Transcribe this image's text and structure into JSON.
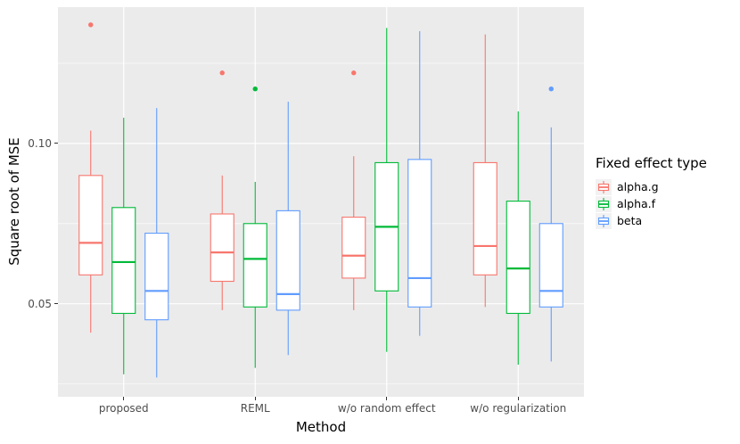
{
  "chart_data": {
    "type": "boxplot",
    "title": "",
    "xlabel": "Method",
    "ylabel": "Square root of MSE",
    "ylim": [
      0.021,
      0.1425
    ],
    "grid": true,
    "panel_background": "#EBEBEB",
    "gridline_color": "#FFFFFF",
    "yticks": [
      {
        "value": 0.05,
        "label": "0.05"
      },
      {
        "value": 0.1,
        "label": "0.10"
      }
    ],
    "yticks_minor": [
      0.025,
      0.075,
      0.125
    ],
    "categories": [
      "proposed",
      "REML",
      "w/o random effect",
      "w/o regularization"
    ],
    "legend": {
      "title": "Fixed effect type",
      "position": "right",
      "entries": [
        {
          "label": "alpha.g",
          "color": "#F8766D"
        },
        {
          "label": "alpha.f",
          "color": "#00BA38"
        },
        {
          "label": "beta",
          "color": "#619CFF"
        }
      ]
    },
    "series": [
      {
        "name": "alpha.g",
        "color": "#F8766D",
        "boxes": [
          {
            "category": "proposed",
            "low": 0.041,
            "q1": 0.059,
            "median": 0.069,
            "q3": 0.09,
            "high": 0.104,
            "outliers": [
              0.137
            ]
          },
          {
            "category": "REML",
            "low": 0.048,
            "q1": 0.057,
            "median": 0.066,
            "q3": 0.078,
            "high": 0.09,
            "outliers": [
              0.122
            ]
          },
          {
            "category": "w/o random effect",
            "low": 0.048,
            "q1": 0.058,
            "median": 0.065,
            "q3": 0.077,
            "high": 0.096,
            "outliers": [
              0.122
            ]
          },
          {
            "category": "w/o regularization",
            "low": 0.049,
            "q1": 0.059,
            "median": 0.068,
            "q3": 0.094,
            "high": 0.134,
            "outliers": []
          }
        ]
      },
      {
        "name": "alpha.f",
        "color": "#00BA38",
        "boxes": [
          {
            "category": "proposed",
            "low": 0.028,
            "q1": 0.047,
            "median": 0.063,
            "q3": 0.08,
            "high": 0.108,
            "outliers": []
          },
          {
            "category": "REML",
            "low": 0.03,
            "q1": 0.049,
            "median": 0.064,
            "q3": 0.075,
            "high": 0.088,
            "outliers": [
              0.117
            ]
          },
          {
            "category": "w/o random effect",
            "low": 0.035,
            "q1": 0.054,
            "median": 0.074,
            "q3": 0.094,
            "high": 0.136,
            "outliers": []
          },
          {
            "category": "w/o regularization",
            "low": 0.031,
            "q1": 0.047,
            "median": 0.061,
            "q3": 0.082,
            "high": 0.11,
            "outliers": []
          }
        ]
      },
      {
        "name": "beta",
        "color": "#619CFF",
        "boxes": [
          {
            "category": "proposed",
            "low": 0.027,
            "q1": 0.045,
            "median": 0.054,
            "q3": 0.072,
            "high": 0.111,
            "outliers": []
          },
          {
            "category": "REML",
            "low": 0.034,
            "q1": 0.048,
            "median": 0.053,
            "q3": 0.079,
            "high": 0.113,
            "outliers": []
          },
          {
            "category": "w/o random effect",
            "low": 0.04,
            "q1": 0.049,
            "median": 0.058,
            "q3": 0.095,
            "high": 0.135,
            "outliers": []
          },
          {
            "category": "w/o regularization",
            "low": 0.032,
            "q1": 0.049,
            "median": 0.054,
            "q3": 0.075,
            "high": 0.105,
            "outliers": [
              0.117
            ]
          }
        ]
      }
    ]
  }
}
